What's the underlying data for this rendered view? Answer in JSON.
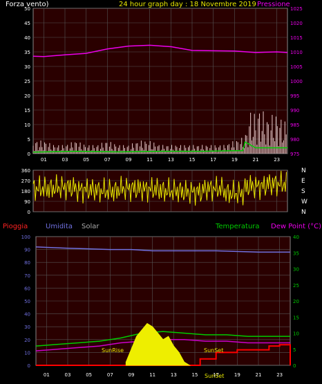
{
  "header": {
    "wind_label": "Forza vento)",
    "date_label": "24 hour graph day : 18 Novembre 2019",
    "pressure_label": "Pressione"
  },
  "bottom_header": {
    "rain_label": "Pioggia",
    "humidity_label": "Umidita",
    "solar_label": "Solar",
    "temperature_label": "Temperatura",
    "dewpoint_label": "Dew Point (°C)"
  },
  "annotations": {
    "sunrise": "SunRise",
    "sunset": "SunSet",
    "sunset_axis": "SunSet"
  },
  "colors": {
    "wind": "#e8cccc",
    "gust_avg": "#00cc00",
    "pressure": "#ee00ee",
    "direction": "#e8e800",
    "humidity": "#7070e0",
    "temperature": "#00cc00",
    "dewpoint": "#cc00cc",
    "rain": "#ff0000",
    "solar": "#eeee00",
    "plot_bg": "#2a0000"
  },
  "chart_data": [
    {
      "type": "line",
      "name": "wind-pressure",
      "x_ticks": [
        "01",
        "03",
        "05",
        "07",
        "09",
        "11",
        "13",
        "15",
        "17",
        "19",
        "21",
        "23"
      ],
      "ylim": [
        0,
        50
      ],
      "y_ticks": [
        "0",
        "5",
        "10",
        "15",
        "20",
        "25",
        "30",
        "35",
        "40",
        "45",
        "50"
      ],
      "y2lim": [
        975,
        1025
      ],
      "y2_ticks": [
        "975",
        "980",
        "985",
        "990",
        "995",
        "1000",
        "1005",
        "1010",
        "1015",
        "1020",
        "1025"
      ],
      "series": [
        {
          "key": "wind",
          "x": [
            0,
            1,
            2,
            3,
            4,
            5,
            6,
            7,
            8,
            9,
            10,
            11,
            12,
            13,
            14,
            15,
            16,
            17,
            18,
            19,
            20,
            20.5,
            21,
            21.5,
            22,
            22.5,
            23,
            23.5,
            24
          ],
          "values": [
            3,
            3,
            2,
            2,
            3,
            2,
            2,
            3,
            2,
            2,
            3,
            3,
            2,
            2,
            2,
            2,
            2,
            2,
            2,
            3,
            4,
            10,
            9,
            11,
            8,
            9,
            9,
            8,
            7
          ]
        },
        {
          "key": "gust_avg",
          "x": [
            0,
            4,
            8,
            12,
            16,
            19,
            19.8,
            20,
            21,
            22,
            23,
            24
          ],
          "values": [
            0.5,
            0.8,
            0.6,
            0.8,
            0.8,
            1,
            1,
            4,
            2,
            2,
            2,
            2
          ]
        },
        {
          "key": "pressure",
          "x": [
            0,
            1,
            3,
            5,
            7,
            9,
            11,
            13,
            15,
            17,
            19,
            21,
            23,
            24
          ],
          "values": [
            1008.5,
            1008.4,
            1009,
            1009.5,
            1011,
            1012,
            1012.3,
            1011.8,
            1010.5,
            1010.4,
            1010.3,
            1009.8,
            1010,
            1009.8
          ]
        }
      ]
    },
    {
      "type": "scatter",
      "name": "wind-direction",
      "x_ticks": [
        "01",
        "03",
        "05",
        "07",
        "09",
        "11",
        "13",
        "15",
        "17",
        "19",
        "21",
        "23"
      ],
      "ylim": [
        0,
        360
      ],
      "y_ticks": [
        "0",
        "90",
        "180",
        "270",
        "360"
      ],
      "y2_ticks": [
        "N",
        "W",
        "S",
        "E",
        "N"
      ],
      "series": [
        {
          "key": "direction",
          "x": [
            0,
            2,
            4,
            6,
            8,
            10,
            12,
            14,
            16,
            18,
            20,
            22,
            24
          ],
          "values": [
            200,
            210,
            190,
            180,
            200,
            195,
            180,
            170,
            200,
            160,
            220,
            240,
            250
          ]
        }
      ]
    },
    {
      "type": "line",
      "name": "humidity-temperature",
      "x_ticks": [
        "01",
        "03",
        "05",
        "07",
        "09",
        "11",
        "13",
        "15",
        "17",
        "19",
        "21",
        "23"
      ],
      "ylim": [
        0,
        100
      ],
      "y_ticks": [
        "0",
        "10",
        "20",
        "30",
        "40",
        "50",
        "60",
        "70",
        "80",
        "90",
        "100"
      ],
      "y2lim": [
        0,
        40
      ],
      "y2_ticks": [
        "0",
        "5",
        "10",
        "15",
        "20",
        "25",
        "30",
        "35",
        "40"
      ],
      "series": [
        {
          "key": "humidity",
          "x": [
            0,
            3,
            7,
            9,
            11,
            14,
            17,
            21,
            24
          ],
          "values": [
            92,
            91,
            90,
            90,
            89,
            89,
            89,
            88,
            88
          ]
        },
        {
          "key": "temperature",
          "x": [
            0,
            2,
            4,
            6,
            8,
            10,
            12,
            14,
            16,
            18,
            20,
            22,
            24
          ],
          "values": [
            6,
            6.5,
            7,
            7.5,
            8.5,
            10,
            10.5,
            10,
            9.5,
            9.5,
            9,
            9,
            9
          ]
        },
        {
          "key": "dewpoint",
          "x": [
            0,
            2,
            4,
            6,
            8,
            10,
            12,
            14,
            16,
            18,
            20,
            22,
            24
          ],
          "values": [
            4.5,
            5,
            5.5,
            6,
            7,
            7.5,
            8,
            8,
            7.5,
            7.5,
            7,
            7,
            7
          ]
        },
        {
          "key": "rain",
          "x": [
            0,
            15,
            15.5,
            16,
            17,
            18,
            19,
            20,
            21,
            22,
            23,
            23.8,
            24
          ],
          "values": [
            0,
            0,
            5,
            5,
            10,
            10,
            12,
            12,
            12,
            15,
            16,
            16,
            0
          ]
        },
        {
          "key": "solar",
          "x": [
            8.5,
            9,
            9.5,
            10,
            10.5,
            11,
            11.5,
            12,
            12.5,
            13,
            13.5,
            14,
            14.5
          ],
          "values": [
            1,
            5,
            9,
            11,
            13,
            12,
            10,
            8,
            9,
            6,
            4,
            1,
            0
          ]
        }
      ]
    }
  ]
}
